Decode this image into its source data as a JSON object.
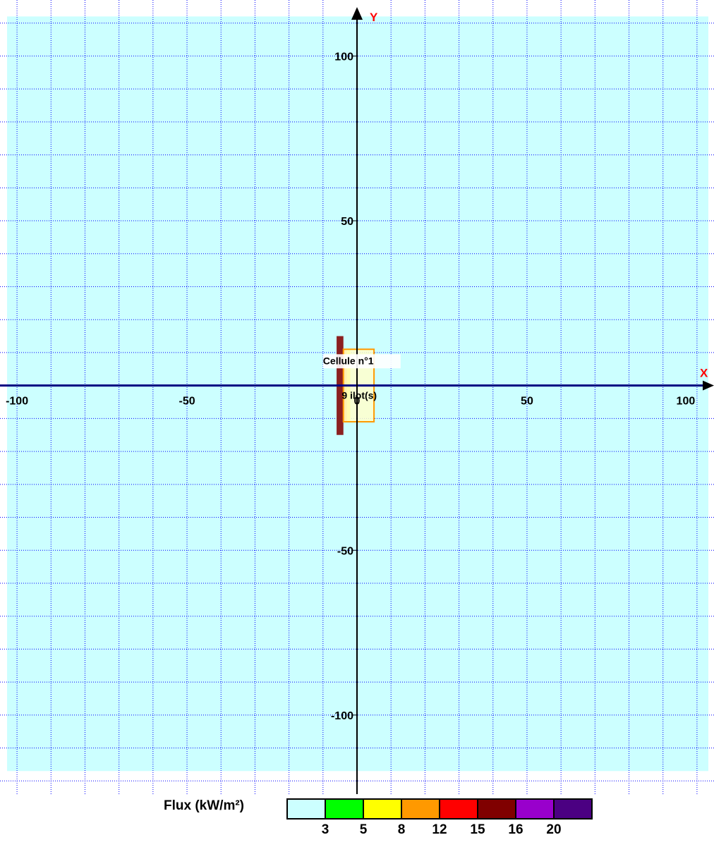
{
  "diagram": {
    "x_axis_name": "X",
    "y_axis_name": "Y",
    "x_range": [
      -105,
      105
    ],
    "y_range": [
      -124,
      117
    ],
    "zone_extent": {
      "x": [
        -105,
        105
      ],
      "y": [
        -117,
        112
      ]
    },
    "grid_step": 10,
    "x_tick_values": [
      -100,
      -50,
      0,
      50,
      100
    ],
    "x_tick_labels": [
      "-100",
      "-50",
      "0",
      "50",
      "100"
    ],
    "y_tick_values": [
      100,
      50,
      -50,
      -100
    ],
    "y_tick_labels": [
      "100",
      "50",
      "-50",
      "-100"
    ],
    "background_color": "#ffffff",
    "grid_color": "#0000ff",
    "zone_color": "#ccffff",
    "objects": [
      {
        "name": "wall",
        "color": "#8b2020",
        "x": [
          -6,
          -4
        ],
        "y": [
          -15,
          15
        ]
      },
      {
        "name": "flux-band-orange",
        "color": "#ff9900",
        "x": [
          -4,
          -3
        ],
        "y": [
          -11,
          11
        ]
      },
      {
        "name": "flux-band-yellow",
        "color": "#ffff00",
        "x": [
          -3,
          -2
        ],
        "y": [
          -11,
          11
        ]
      },
      {
        "name": "cellule",
        "color": "#ffffcc",
        "stroke": "#ff9900",
        "x": [
          -4,
          5
        ],
        "y": [
          -11,
          11
        ]
      }
    ],
    "labels": {
      "cellule": "Cellule n°1",
      "ilots": "9 ilot(s)"
    }
  },
  "legend": {
    "title": "Flux (kW/m²)",
    "colors": [
      "#ccffff",
      "#00ff00",
      "#ffff00",
      "#ff9900",
      "#ff0000",
      "#800000",
      "#9900cc",
      "#4b0082"
    ],
    "thresholds": [
      "3",
      "5",
      "8",
      "12",
      "15",
      "16",
      "20"
    ]
  }
}
